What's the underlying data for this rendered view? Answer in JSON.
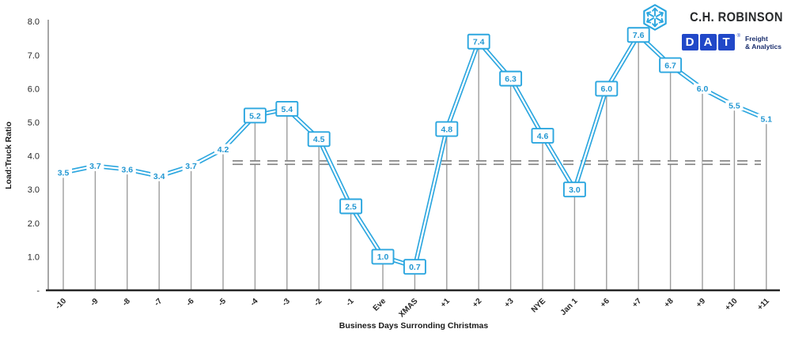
{
  "header": {
    "chrobinson": {
      "name": "C.H. ROBINSON"
    },
    "dat": {
      "letters": [
        "D",
        "A",
        "T"
      ],
      "registered_mark": "®",
      "tagline": [
        "Freight",
        "& Analytics"
      ]
    }
  },
  "chart_data": {
    "type": "line",
    "title": "",
    "xlabel": "Business Days Surronding Christmas",
    "ylabel": "Load:Truck Ratio",
    "categories": [
      "-10",
      "-9",
      "-8",
      "-7",
      "-6",
      "-5",
      "-4",
      "-3",
      "-2",
      "-1",
      "Eve",
      "XMAS",
      "+1",
      "+2",
      "+3",
      "NYE",
      "Jan 1",
      "+6",
      "+7",
      "+8",
      "+9",
      "+10",
      "+11"
    ],
    "values": [
      3.5,
      3.7,
      3.6,
      3.4,
      3.7,
      4.2,
      5.2,
      5.4,
      4.5,
      2.5,
      1.0,
      0.7,
      4.8,
      7.4,
      6.3,
      4.6,
      3.0,
      6.0,
      7.6,
      6.7,
      6.0,
      5.5,
      5.1
    ],
    "label_boxed": [
      false,
      false,
      false,
      false,
      false,
      false,
      true,
      true,
      true,
      true,
      true,
      true,
      true,
      true,
      true,
      true,
      true,
      true,
      true,
      true,
      false,
      false,
      false
    ],
    "ylim": [
      0,
      8
    ],
    "ytick_labels": [
      "-",
      "1.0",
      "2.0",
      "3.0",
      "4.0",
      "5.0",
      "6.0",
      "7.0",
      "8.0"
    ],
    "reference_line": {
      "value": 3.8,
      "style": "dashed"
    },
    "grid": false,
    "legend": false,
    "drop_lines": true,
    "colors": {
      "line": "#2ba6df",
      "label_text": "#2397d2",
      "reference": "#7f7f7f",
      "drop_line": "#9d9d9d",
      "axis_x": "#262626",
      "axis_y": "#a6a6a6",
      "tick_text": "#262626"
    }
  }
}
